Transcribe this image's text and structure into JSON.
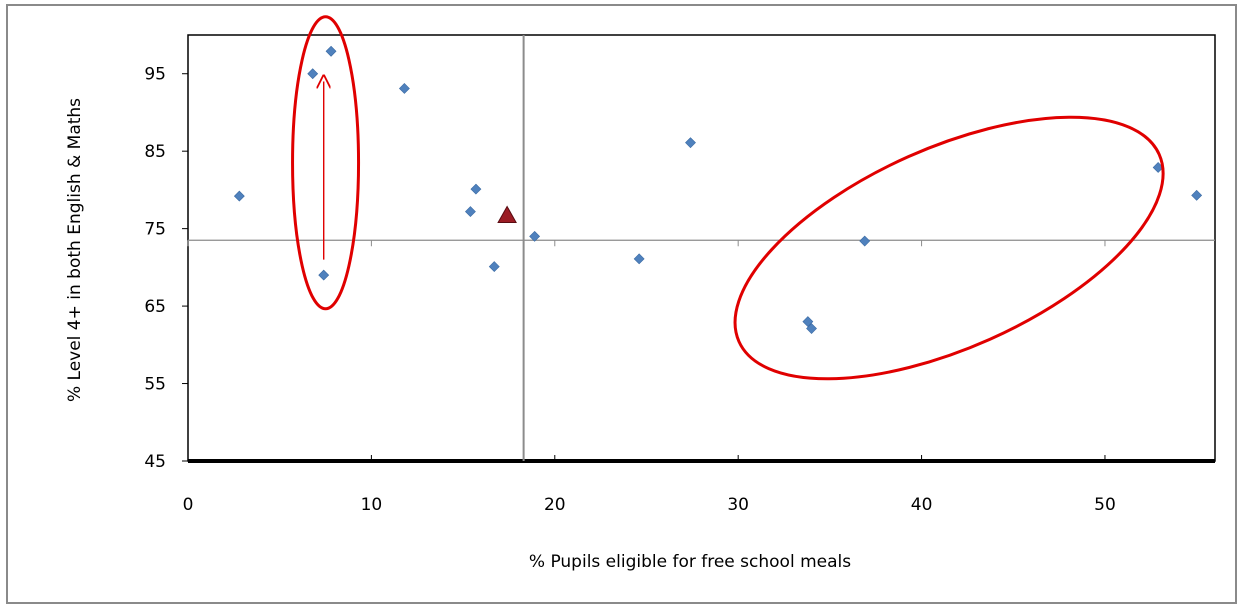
{
  "chart_data": {
    "type": "scatter",
    "title": "",
    "xlabel": "% Pupils eligible  for  free school meals",
    "ylabel": "% Level 4+ in both English  & Maths",
    "xlim": [
      0,
      56
    ],
    "ylim": [
      45,
      100
    ],
    "xticks": [
      0,
      10,
      20,
      30,
      40,
      50
    ],
    "yticks": [
      45,
      55,
      65,
      75,
      85,
      95
    ],
    "xtick_labels": [
      "0",
      "10",
      "20",
      "30",
      "40",
      "50"
    ],
    "ytick_labels": [
      "45",
      "55",
      "65",
      "75",
      "85",
      "95"
    ],
    "grid": false,
    "legend": "none",
    "reference_lines": {
      "x": 18.3,
      "y": 73.5
    },
    "series": [
      {
        "marker": "diamond",
        "color": "#4f81bd",
        "points": [
          {
            "x": 2.8,
            "y": 79.2
          },
          {
            "x": 6.8,
            "y": 95.0
          },
          {
            "x": 7.8,
            "y": 97.9
          },
          {
            "x": 7.4,
            "y": 69.0
          },
          {
            "x": 11.8,
            "y": 93.1
          },
          {
            "x": 15.7,
            "y": 80.1
          },
          {
            "x": 15.4,
            "y": 77.2
          },
          {
            "x": 16.7,
            "y": 70.1
          },
          {
            "x": 18.9,
            "y": 74.0
          },
          {
            "x": 24.6,
            "y": 71.1
          },
          {
            "x": 27.4,
            "y": 86.1
          },
          {
            "x": 33.8,
            "y": 63.0
          },
          {
            "x": 34.0,
            "y": 62.1
          },
          {
            "x": 36.9,
            "y": 73.4
          },
          {
            "x": 52.9,
            "y": 82.9
          },
          {
            "x": 55.0,
            "y": 79.3
          }
        ]
      },
      {
        "marker": "triangle",
        "color": "#9b1c24",
        "points": [
          {
            "x": 17.4,
            "y": 76.7
          }
        ]
      }
    ],
    "annotations": [
      {
        "type": "ellipse",
        "color": "#e00000",
        "center": {
          "x": 7.5,
          "y": 83.5
        }
      },
      {
        "type": "ellipse",
        "color": "#e00000",
        "center": {
          "x": 41.5,
          "y": 72.5
        }
      },
      {
        "type": "arrow",
        "color": "#e00000",
        "from": {
          "x": 7.4,
          "y": 71.0
        },
        "to": {
          "x": 7.4,
          "y": 94.0
        }
      }
    ]
  }
}
